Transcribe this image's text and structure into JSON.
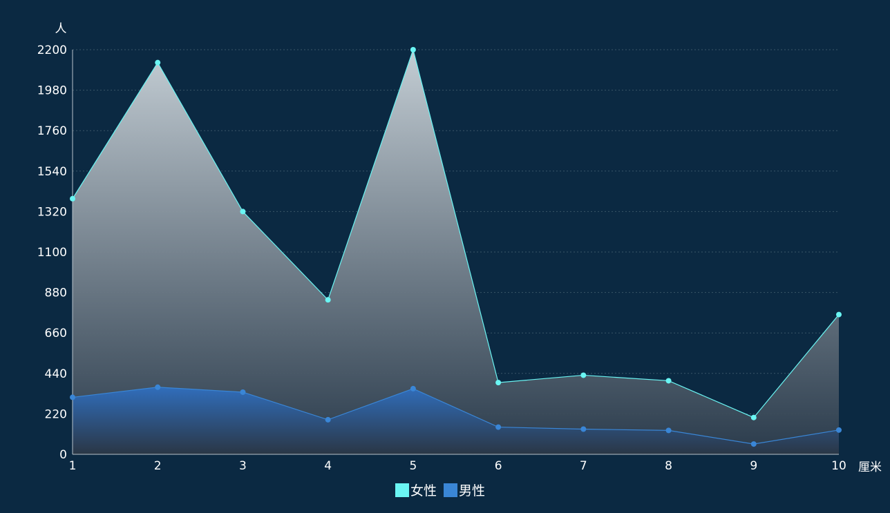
{
  "chart_data": {
    "type": "area",
    "y_axis_name": "人",
    "x_axis_name": "厘米",
    "categories": [
      "1",
      "2",
      "3",
      "4",
      "5",
      "6",
      "7",
      "8",
      "9",
      "10"
    ],
    "ylim": [
      0,
      2200
    ],
    "yticks": [
      0,
      220,
      440,
      660,
      880,
      1100,
      1320,
      1540,
      1760,
      1980,
      2200
    ],
    "grid": "horizontal dotted",
    "legend": "bottom-center",
    "series": [
      {
        "name": "女性",
        "color": "#6af5f3",
        "values": [
          1390,
          2130,
          1320,
          840,
          2200,
          390,
          430,
          400,
          200,
          760
        ]
      },
      {
        "name": "男性",
        "color": "#3a86d6",
        "values": [
          310,
          365,
          338,
          188,
          357,
          148,
          137,
          130,
          56,
          132
        ]
      }
    ]
  }
}
